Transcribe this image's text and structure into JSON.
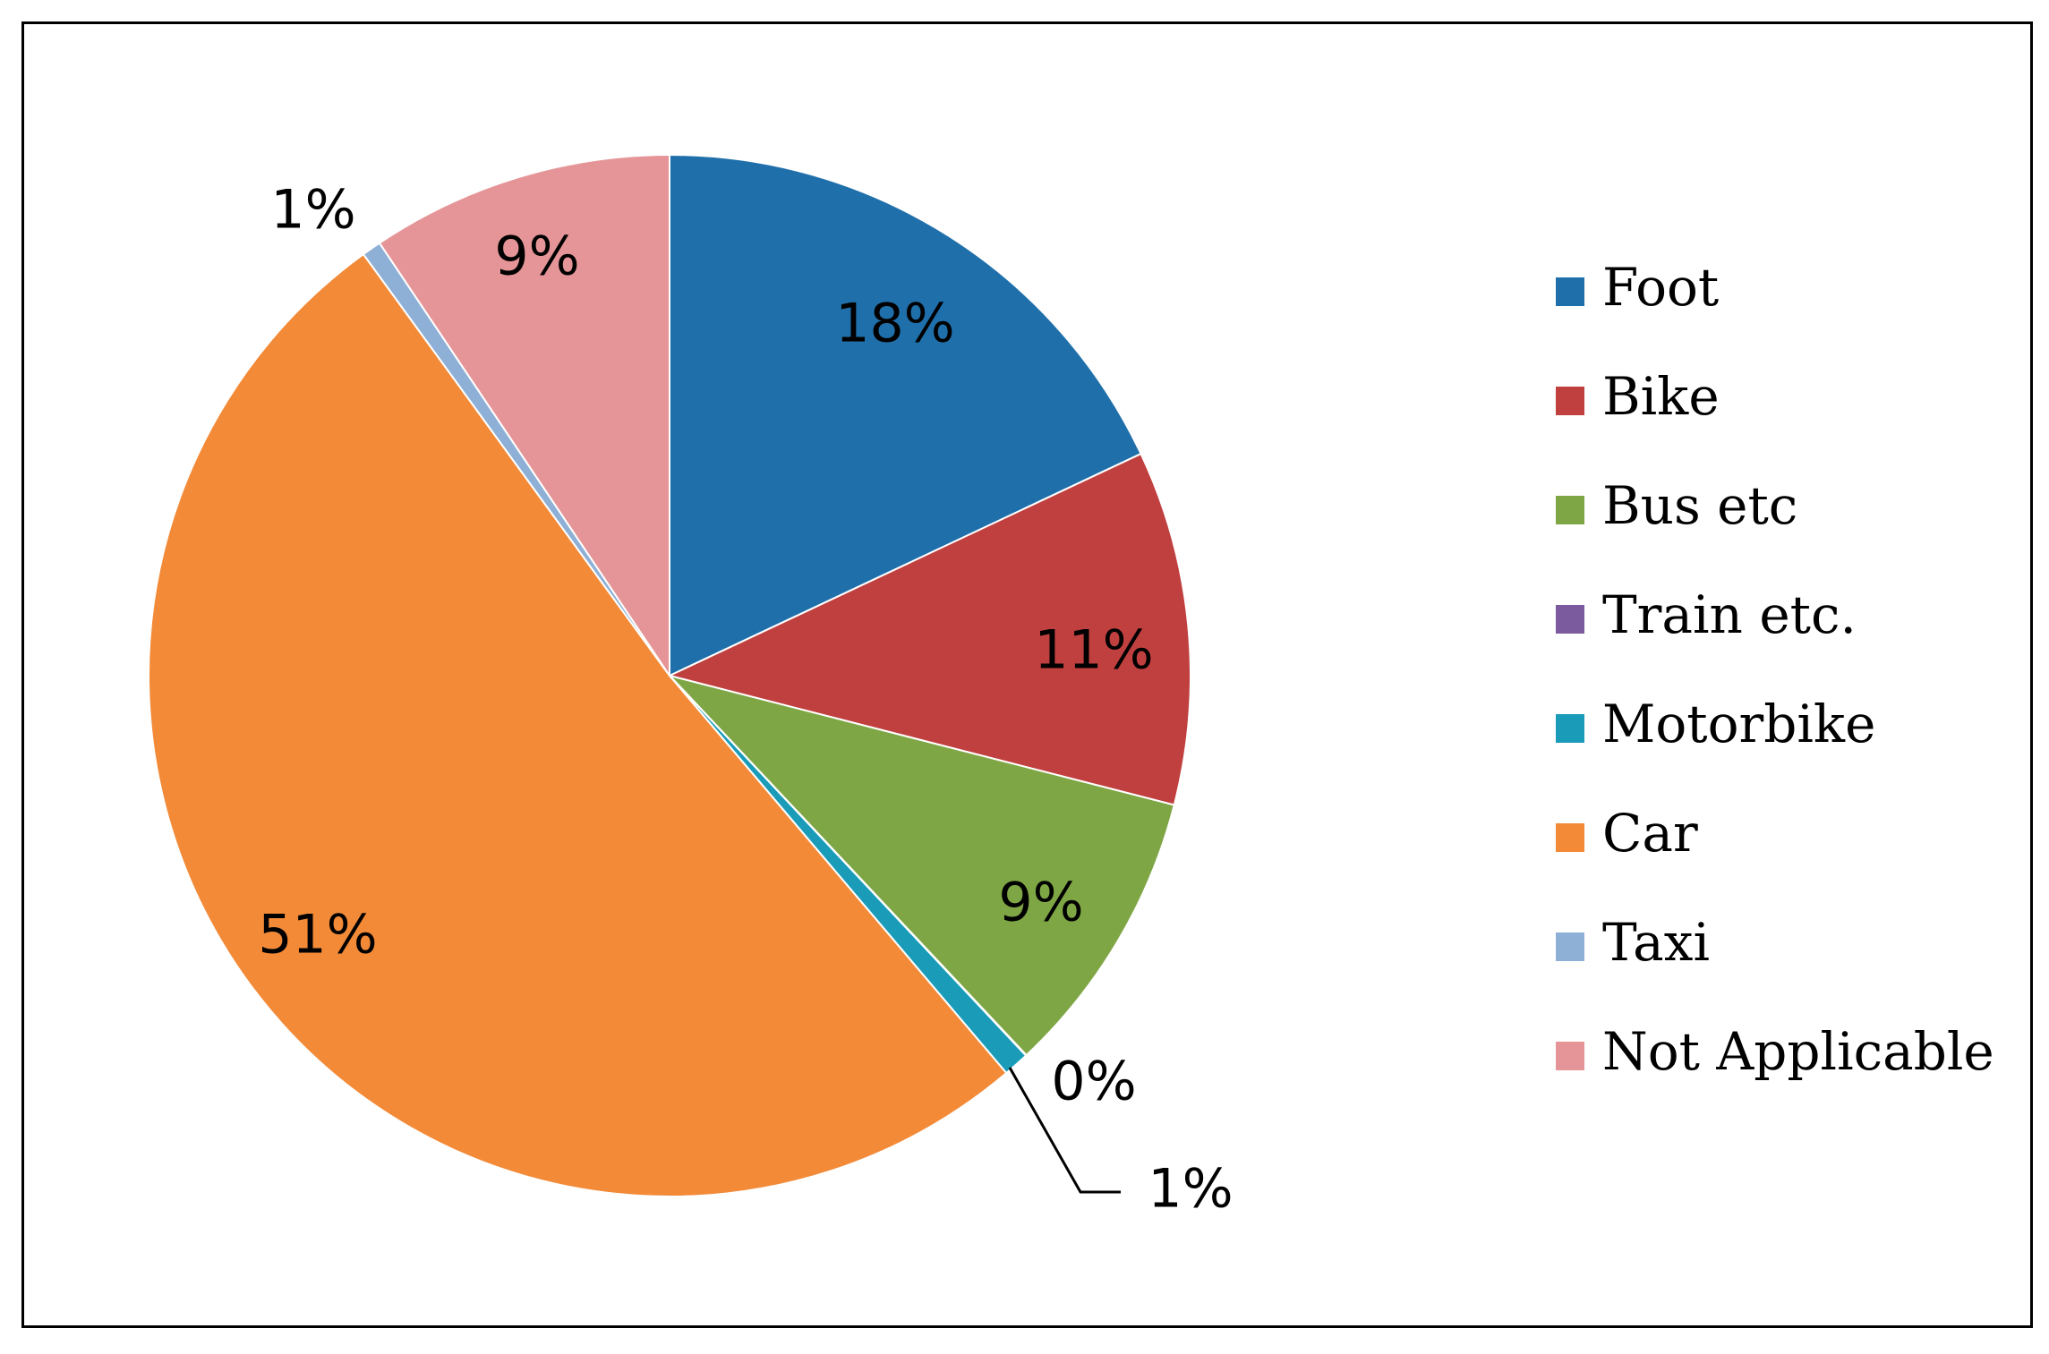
{
  "chart_data": {
    "type": "pie",
    "title": "",
    "legend_position": "right",
    "slices": [
      {
        "name": "Foot",
        "value": 18,
        "label": "18%",
        "color": "#1F6FAA"
      },
      {
        "name": "Bike",
        "value": 11,
        "label": "11%",
        "color": "#C0403F"
      },
      {
        "name": "Bus etc",
        "value": 9,
        "label": "9%",
        "color": "#7FA645"
      },
      {
        "name": "Train etc.",
        "value": 0,
        "label": "0%",
        "color": "#7B5A9E"
      },
      {
        "name": "Motorbike",
        "value": 1,
        "label": "1%",
        "color": "#1A9CB9"
      },
      {
        "name": "Car",
        "value": 51,
        "label": "51%",
        "color": "#F28A38"
      },
      {
        "name": "Taxi",
        "value": 1,
        "label": "1%",
        "color": "#8FB0D6"
      },
      {
        "name": "Not Applicable",
        "value": 9,
        "label": "9%",
        "color": "#E59597"
      }
    ]
  }
}
